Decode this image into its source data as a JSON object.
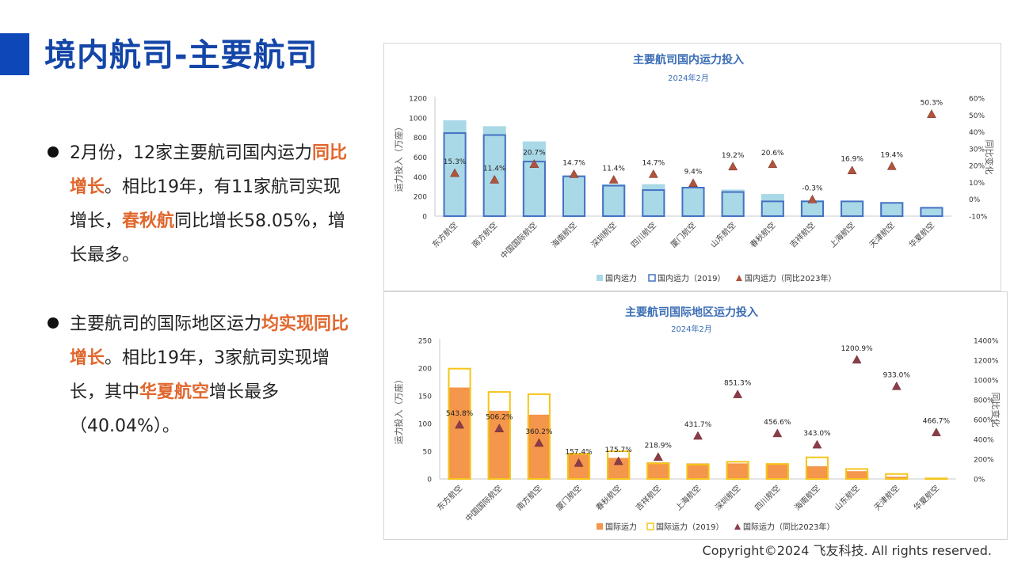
{
  "page": {
    "title": "境内航司-主要航司",
    "copyright": "Copyright©2024 飞友科技. All rights reserved."
  },
  "bullets": [
    {
      "segments": [
        {
          "text": "2月份，12家主要航司国内运力",
          "hl": false
        },
        {
          "text": "同比增长",
          "hl": true
        },
        {
          "text": "。相比19年，有11家航司实现增长，",
          "hl": false
        },
        {
          "text": "春秋航",
          "hl": true
        },
        {
          "text": "同比增长58.05%，增长最多。",
          "hl": false
        }
      ]
    },
    {
      "segments": [
        {
          "text": "主要航司的国际地区运力",
          "hl": false
        },
        {
          "text": "均实现同比增长",
          "hl": true
        },
        {
          "text": "。相比19年，3家航司实现增长，其中",
          "hl": false
        },
        {
          "text": "华夏航空",
          "hl": true
        },
        {
          "text": "增长最多（40.04%）。",
          "hl": false
        }
      ]
    }
  ],
  "chart_data": [
    {
      "type": "bar",
      "title": "主要航司国内运力投入",
      "subtitle": "2024年2月",
      "ylabel": "运力投入（万座）",
      "y2label": "同比变化",
      "ylim": [
        0,
        1200
      ],
      "yticks": [
        0,
        200,
        400,
        600,
        800,
        1000,
        1200
      ],
      "y2lim": [
        -10,
        60
      ],
      "y2ticks": [
        -10,
        0,
        10,
        20,
        30,
        40,
        50,
        60
      ],
      "categories": [
        "东方航空",
        "南方航空",
        "中国国际航空",
        "海南航空",
        "深圳航空",
        "四川航空",
        "厦门航空",
        "山东航空",
        "春秋航空",
        "吉祥航空",
        "上海航空",
        "天津航空",
        "华夏航空"
      ],
      "series": [
        {
          "name": "国内运力",
          "kind": "bar-filled",
          "color": "#a9d8e6",
          "values": [
            975,
            915,
            760,
            415,
            325,
            325,
            290,
            270,
            225,
            160,
            150,
            135,
            85
          ]
        },
        {
          "name": "国内运力（2019）",
          "kind": "bar-outline",
          "color": "#4472c4",
          "values": [
            845,
            825,
            555,
            405,
            310,
            265,
            290,
            245,
            150,
            150,
            150,
            135,
            85
          ]
        },
        {
          "name": "国内运力（同比2023年）",
          "kind": "marker",
          "color": "#b0543a",
          "axis": "right",
          "values": [
            15.3,
            11.4,
            20.7,
            14.7,
            11.4,
            14.7,
            9.4,
            19.2,
            20.6,
            -0.3,
            16.9,
            19.4,
            50.3
          ],
          "labels": [
            "15.3%",
            "11.4%",
            "20.7%",
            "14.7%",
            "11.4%",
            "14.7%",
            "9.4%",
            "19.2%",
            "20.6%",
            "-0.3%",
            "16.9%",
            "19.4%",
            "50.3%"
          ]
        }
      ]
    },
    {
      "type": "bar",
      "title": "主要航司国际地区运力投入",
      "subtitle": "2024年2月",
      "ylabel": "运力投入（万座）",
      "y2label": "同比变化",
      "ylim": [
        0,
        250
      ],
      "yticks": [
        0,
        50,
        100,
        150,
        200,
        250
      ],
      "y2lim": [
        0,
        1400
      ],
      "y2ticks": [
        0,
        200,
        400,
        600,
        800,
        1000,
        1200,
        1400
      ],
      "categories": [
        "东方航空",
        "中国国际航空",
        "南方航空",
        "厦门航空",
        "春秋航空",
        "吉祥航空",
        "上海航空",
        "深圳航空",
        "四川航空",
        "海南航空",
        "山东航空",
        "天津航空",
        "华夏航空"
      ],
      "series": [
        {
          "name": "国际运力",
          "kind": "bar-filled",
          "color": "#f4964b",
          "values": [
            165,
            123,
            116,
            47,
            38,
            30,
            28,
            28,
            27,
            23,
            14,
            4,
            1
          ]
        },
        {
          "name": "国际运力（2019）",
          "kind": "bar-outline",
          "color": "#f5c518",
          "values": [
            199,
            157,
            153,
            45,
            50,
            28,
            26,
            31,
            27,
            39,
            18,
            9,
            1
          ]
        },
        {
          "name": "国际运力（同比2023年）",
          "kind": "marker",
          "color": "#8b3c4a",
          "axis": "right",
          "values": [
            543.8,
            506.2,
            360.2,
            157.4,
            175.7,
            218.9,
            431.7,
            851.3,
            456.6,
            343.0,
            1200.9,
            933.0,
            466.7
          ],
          "labels": [
            "543.8%",
            "506.2%",
            "360.2%",
            "157.4%",
            "175.7%",
            "218.9%",
            "431.7%",
            "851.3%",
            "456.6%",
            "343.0%",
            "1200.9%",
            "933.0%",
            "466.7%"
          ]
        }
      ]
    }
  ]
}
